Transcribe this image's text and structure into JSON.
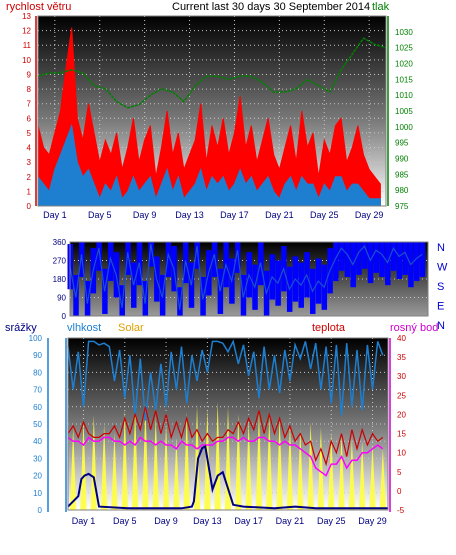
{
  "colors": {
    "wind_red": "#ff0000",
    "wind_blue": "#1e7fd0",
    "pressure_green": "#008000",
    "direction_blue": "#0000ff",
    "direction_line": "#1a4fd0",
    "rain_navy": "#000080",
    "humidity_blue": "#1e7fd0",
    "solar_yellow": "#ffff40",
    "temp_red": "#cc0000",
    "dew_magenta": "#ff00ff",
    "header_blue": "#0000cc",
    "solar_label": "#e0a000"
  },
  "chart_data": [
    {
      "type": "line",
      "title": "Current last 30 days 30 September 2014",
      "ylabel_left": "rychlost větru",
      "ylabel_right": "tlak",
      "x_ticks": [
        "Day 1",
        "Day 5",
        "Day 9",
        "Day 13",
        "Day 17",
        "Day 21",
        "Day 25",
        "Day 29"
      ],
      "x_tick_days": [
        1,
        5,
        9,
        13,
        17,
        21,
        25,
        29
      ],
      "xlim": [
        0,
        31
      ],
      "ylim_left": [
        0,
        13
      ],
      "yticks_left": [
        "0",
        "1",
        "2",
        "3",
        "4",
        "5",
        "6",
        "7",
        "8",
        "9",
        "10",
        "11",
        "12",
        "13"
      ],
      "ylim_right": [
        975,
        1035
      ],
      "yticks_right": [
        "975",
        "980",
        "985",
        "990",
        "995",
        "1000",
        "1005",
        "1010",
        "1015",
        "1020",
        "1025",
        "1030"
      ],
      "grid": true,
      "series": [
        {
          "key": "gust",
          "axis": "left",
          "x": [
            0,
            0.5,
            1,
            1.5,
            2,
            2.5,
            3,
            3.5,
            4,
            4.5,
            5,
            5.5,
            6,
            6.5,
            7,
            7.5,
            8,
            8.5,
            9,
            9.5,
            10,
            10.5,
            11,
            11.5,
            12,
            12.5,
            13,
            13.5,
            14,
            14.5,
            15,
            15.5,
            16,
            16.5,
            17,
            17.5,
            18,
            18.5,
            19,
            19.5,
            20,
            20.5,
            21,
            21.5,
            22,
            22.5,
            23,
            23.5,
            24,
            24.5,
            25,
            25.5,
            26,
            26.5,
            27,
            27.5,
            28,
            28.5,
            29,
            29.5,
            30,
            30.5
          ],
          "y": [
            5.5,
            4.0,
            3.5,
            5.0,
            6.5,
            9.5,
            12.2,
            6.0,
            4.5,
            7.0,
            5.0,
            3.0,
            4.5,
            3.5,
            5.0,
            2.5,
            4.0,
            6.0,
            3.0,
            4.5,
            5.5,
            2.0,
            4.0,
            6.5,
            3.5,
            5.0,
            2.5,
            3.5,
            4.5,
            7.0,
            3.0,
            5.5,
            4.0,
            6.0,
            3.5,
            5.0,
            7.5,
            4.0,
            5.5,
            3.0,
            4.5,
            6.0,
            3.5,
            2.5,
            4.0,
            5.5,
            3.0,
            6.5,
            4.0,
            5.0,
            2.0,
            4.5,
            3.5,
            5.5,
            6.0,
            3.0,
            4.0,
            5.5,
            3.5,
            2.5,
            2.0,
            1.5
          ]
        },
        {
          "key": "wind",
          "axis": "left",
          "x": [
            0,
            0.5,
            1,
            1.5,
            2,
            2.5,
            3,
            3.5,
            4,
            4.5,
            5,
            5.5,
            6,
            6.5,
            7,
            7.5,
            8,
            8.5,
            9,
            9.5,
            10,
            10.5,
            11,
            11.5,
            12,
            12.5,
            13,
            13.5,
            14,
            14.5,
            15,
            15.5,
            16,
            16.5,
            17,
            17.5,
            18,
            18.5,
            19,
            19.5,
            20,
            20.5,
            21,
            21.5,
            22,
            22.5,
            23,
            23.5,
            24,
            24.5,
            25,
            25.5,
            26,
            26.5,
            27,
            27.5,
            28,
            28.5,
            29,
            29.5,
            30,
            30.5
          ],
          "y": [
            2.0,
            1.5,
            1.0,
            2.5,
            3.5,
            4.5,
            5.5,
            3.0,
            2.0,
            2.5,
            1.5,
            0.5,
            1.5,
            1.0,
            2.0,
            0.5,
            1.0,
            2.0,
            1.0,
            1.5,
            2.0,
            0.5,
            1.5,
            2.5,
            1.0,
            2.0,
            0.5,
            1.0,
            1.5,
            2.5,
            1.0,
            2.0,
            1.5,
            2.0,
            1.0,
            1.5,
            2.5,
            1.5,
            2.0,
            1.0,
            1.5,
            2.0,
            1.0,
            0.5,
            1.5,
            2.0,
            1.0,
            2.0,
            1.5,
            1.5,
            0.5,
            1.5,
            1.0,
            2.0,
            2.0,
            1.0,
            1.5,
            1.5,
            1.0,
            0.5,
            0.5,
            0.5
          ]
        },
        {
          "key": "pressure",
          "axis": "right",
          "x": [
            0,
            1,
            2,
            3,
            4,
            5,
            6,
            7,
            8,
            9,
            10,
            11,
            12,
            13,
            14,
            15,
            16,
            17,
            18,
            19,
            20,
            21,
            22,
            23,
            24,
            25,
            26,
            27,
            28,
            29,
            30,
            31
          ],
          "y": [
            1016,
            1017,
            1017,
            1018,
            1017,
            1013,
            1012,
            1008,
            1006,
            1007,
            1010,
            1012,
            1011,
            1008,
            1013,
            1016,
            1016,
            1015,
            1016,
            1016,
            1014,
            1011,
            1011,
            1012,
            1015,
            1013,
            1011,
            1018,
            1023,
            1028,
            1026,
            1025
          ]
        }
      ]
    },
    {
      "type": "line",
      "title": "",
      "ylim": [
        0,
        360
      ],
      "yticks": [
        "0",
        "90",
        "180",
        "270",
        "360"
      ],
      "direction_labels": [
        "N",
        "W",
        "S",
        "E",
        "N"
      ],
      "xlim": [
        0,
        31
      ],
      "grid": true,
      "series": [
        {
          "key": "wind_direction",
          "x": [
            0,
            0.5,
            1,
            1.5,
            2,
            2.5,
            3,
            3.5,
            4,
            4.5,
            5,
            5.5,
            6,
            6.5,
            7,
            7.5,
            8,
            8.5,
            9,
            9.5,
            10,
            10.5,
            11,
            11.5,
            12,
            12.5,
            13,
            13.5,
            14,
            14.5,
            15,
            15.5,
            16,
            16.5,
            17,
            17.5,
            18,
            18.5,
            19,
            19.5,
            20,
            20.5,
            21,
            21.5,
            22,
            22.5,
            23,
            23.5,
            24,
            24.5,
            25,
            25.5,
            26,
            26.5,
            27,
            27.5,
            28,
            28.5,
            29,
            29.5,
            30,
            30.5
          ],
          "y": [
            240,
            90,
            300,
            60,
            220,
            330,
            120,
            280,
            200,
            40,
            310,
            150,
            260,
            60,
            350,
            180,
            90,
            300,
            230,
            30,
            270,
            150,
            340,
            80,
            210,
            300,
            120,
            250,
            170,
            320,
            90,
            200,
            140,
            260,
            110,
            190,
            160,
            230,
            130,
            180,
            150,
            200,
            120,
            170,
            140,
            220,
            280,
            330,
            300,
            250,
            310,
            340,
            270,
            320,
            300,
            260,
            330,
            290,
            310,
            250,
            280,
            300
          ]
        }
      ]
    },
    {
      "type": "line",
      "title": "",
      "legend": [
        "srážky",
        "vlhkost",
        "Solar",
        "teplota",
        "rosný bod"
      ],
      "legend_placement": "top",
      "x_ticks": [
        "Day 1",
        "Day 5",
        "Day 9",
        "Day 13",
        "Day 17",
        "Day 21",
        "Day 25",
        "Day 29"
      ],
      "x_tick_days": [
        1,
        5,
        9,
        13,
        17,
        21,
        25,
        29
      ],
      "xlim": [
        0,
        31
      ],
      "ylim_left": [
        0,
        100
      ],
      "yticks_left": [
        "0",
        "10",
        "20",
        "30",
        "40",
        "50",
        "60",
        "70",
        "80",
        "90",
        "100"
      ],
      "ylim_right": [
        -5,
        40
      ],
      "yticks_right": [
        "-5",
        "0",
        "5",
        "10",
        "15",
        "20",
        "25",
        "30",
        "35",
        "40"
      ],
      "grid": true,
      "solar_peaks": [
        48,
        52,
        55,
        50,
        45,
        58,
        60,
        62,
        55,
        50,
        42,
        57,
        61,
        59,
        63,
        60,
        56,
        52,
        58,
        55,
        54,
        50,
        47,
        51,
        48,
        45,
        44,
        42,
        40,
        38,
        36
      ],
      "series": [
        {
          "key": "humidity",
          "axis": "left",
          "x": [
            0,
            0.5,
            1,
            1.5,
            2,
            2.5,
            3,
            3.5,
            4,
            4.5,
            5,
            5.5,
            6,
            6.5,
            7,
            7.5,
            8,
            8.5,
            9,
            9.5,
            10,
            10.5,
            11,
            11.5,
            12,
            12.5,
            13,
            13.5,
            14,
            14.5,
            15,
            15.5,
            16,
            16.5,
            17,
            17.5,
            18,
            18.5,
            19,
            19.5,
            20,
            20.5,
            21,
            21.5,
            22,
            22.5,
            23,
            23.5,
            24,
            24.5,
            25,
            25.5,
            26,
            26.5,
            27,
            27.5,
            28,
            28.5,
            29,
            29.5,
            30,
            30.5
          ],
          "y": [
            95,
            70,
            92,
            60,
            98,
            98,
            96,
            97,
            95,
            75,
            93,
            65,
            90,
            55,
            88,
            52,
            80,
            58,
            85,
            60,
            92,
            70,
            95,
            62,
            90,
            75,
            93,
            80,
            98,
            98,
            97,
            92,
            98,
            85,
            96,
            78,
            92,
            65,
            95,
            70,
            90,
            68,
            93,
            75,
            96,
            88,
            98,
            82,
            97,
            70,
            95,
            62,
            96,
            55,
            97,
            60,
            93,
            58,
            96,
            70,
            98,
            90
          ]
        },
        {
          "key": "temperature",
          "axis": "right",
          "x": [
            0,
            0.5,
            1,
            1.5,
            2,
            2.5,
            3,
            3.5,
            4,
            4.5,
            5,
            5.5,
            6,
            6.5,
            7,
            7.5,
            8,
            8.5,
            9,
            9.5,
            10,
            10.5,
            11,
            11.5,
            12,
            12.5,
            13,
            13.5,
            14,
            14.5,
            15,
            15.5,
            16,
            16.5,
            17,
            17.5,
            18,
            18.5,
            19,
            19.5,
            20,
            20.5,
            21,
            21.5,
            22,
            22.5,
            23,
            23.5,
            24,
            24.5,
            25,
            25.5,
            26,
            26.5,
            27,
            27.5,
            28,
            28.5,
            29,
            29.5,
            30,
            30.5
          ],
          "y": [
            15,
            17,
            14,
            18,
            15,
            14,
            14,
            15,
            15,
            17,
            14,
            19,
            15,
            20,
            16,
            22,
            16,
            21,
            15,
            20,
            14,
            18,
            14,
            19,
            14,
            16,
            13,
            15,
            13,
            14,
            14,
            16,
            15,
            18,
            15,
            19,
            16,
            21,
            15,
            20,
            15,
            19,
            14,
            17,
            13,
            15,
            12,
            13,
            8,
            11,
            7,
            13,
            10,
            15,
            9,
            16,
            11,
            16,
            12,
            15,
            13,
            14
          ]
        },
        {
          "key": "dew_point",
          "axis": "right",
          "x": [
            0,
            0.5,
            1,
            1.5,
            2,
            2.5,
            3,
            3.5,
            4,
            4.5,
            5,
            5.5,
            6,
            6.5,
            7,
            7.5,
            8,
            8.5,
            9,
            9.5,
            10,
            10.5,
            11,
            11.5,
            12,
            12.5,
            13,
            13.5,
            14,
            14.5,
            15,
            15.5,
            16,
            16.5,
            17,
            17.5,
            18,
            18.5,
            19,
            19.5,
            20,
            20.5,
            21,
            21.5,
            22,
            22.5,
            23,
            23.5,
            24,
            24.5,
            25,
            25.5,
            26,
            26.5,
            27,
            27.5,
            28,
            28.5,
            29,
            29.5,
            30,
            30.5
          ],
          "y": [
            14,
            13,
            13,
            12,
            14,
            13,
            13,
            14,
            14,
            13,
            13,
            12,
            13,
            12,
            14,
            13,
            13,
            12,
            13,
            12,
            12,
            11,
            13,
            12,
            12,
            11,
            12,
            12,
            12,
            13,
            13,
            14,
            14,
            13,
            14,
            13,
            13,
            14,
            14,
            13,
            13,
            12,
            13,
            12,
            12,
            11,
            10,
            9,
            6,
            5,
            4,
            7,
            7,
            9,
            6,
            8,
            8,
            10,
            10,
            11,
            12,
            11
          ]
        },
        {
          "key": "rain",
          "axis": "left",
          "x": [
            0,
            1,
            1.3,
            1.6,
            2,
            2.5,
            3,
            6,
            9,
            11,
            12,
            12.2,
            12.6,
            13,
            13.3,
            14,
            14.5,
            15,
            16,
            17,
            20,
            22,
            24,
            27,
            30,
            31
          ],
          "y": [
            2,
            8,
            18,
            20,
            21,
            19,
            2,
            1,
            1,
            1,
            2,
            5,
            30,
            36,
            37,
            12,
            20,
            22,
            3,
            2,
            1,
            2,
            1,
            1,
            1,
            1
          ]
        }
      ]
    }
  ]
}
